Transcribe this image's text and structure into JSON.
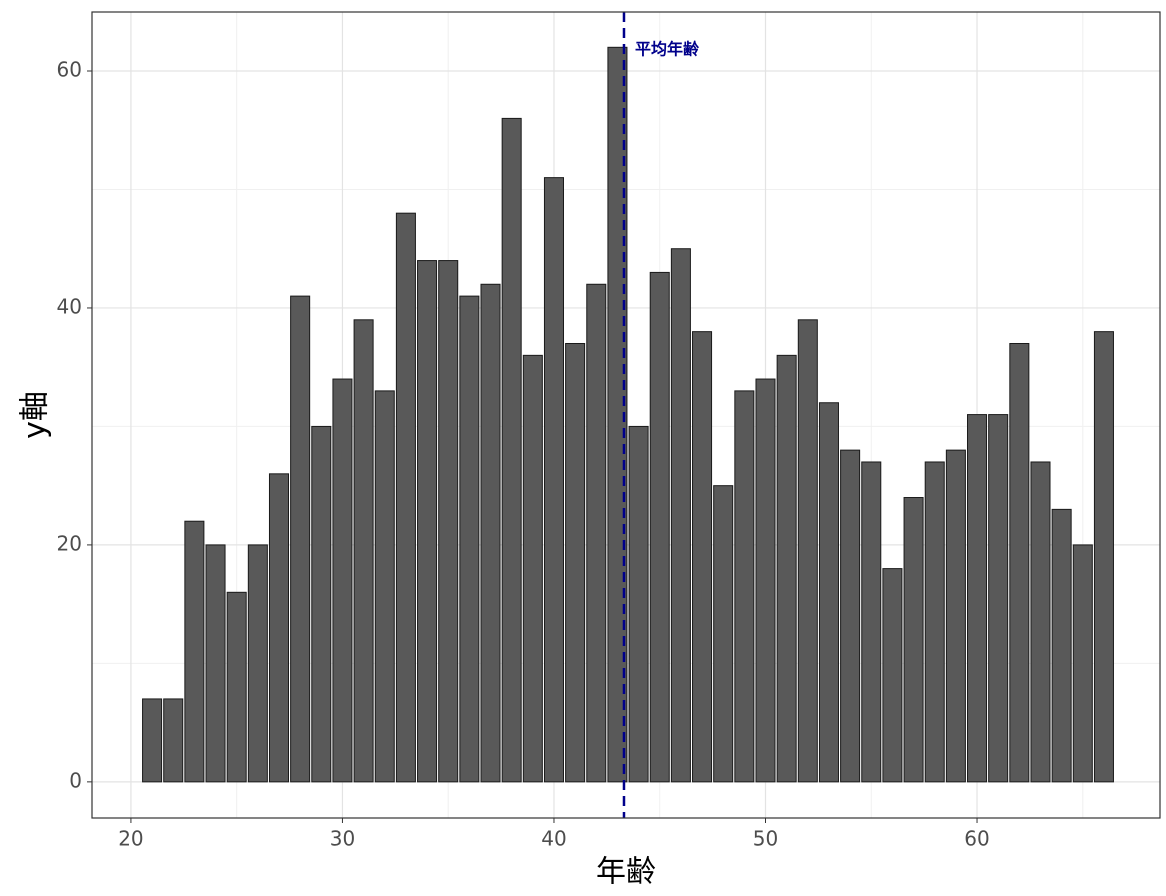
{
  "chart_data": {
    "type": "bar",
    "x": [
      21,
      22,
      23,
      24,
      25,
      26,
      27,
      28,
      29,
      30,
      31,
      32,
      33,
      34,
      35,
      36,
      37,
      38,
      39,
      40,
      41,
      42,
      43,
      44,
      45,
      46,
      47,
      48,
      49,
      50,
      51,
      52,
      53,
      54,
      55,
      56,
      57,
      58,
      59,
      60,
      61,
      62,
      63,
      64,
      65,
      66
    ],
    "values": [
      7,
      7,
      22,
      20,
      16,
      20,
      26,
      41,
      30,
      34,
      39,
      33,
      48,
      44,
      44,
      41,
      42,
      56,
      36,
      51,
      37,
      42,
      62,
      30,
      43,
      45,
      38,
      25,
      33,
      34,
      36,
      39,
      32,
      28,
      27,
      18,
      24,
      27,
      28,
      31,
      31,
      37,
      27,
      23,
      20,
      38
    ],
    "color": "#595959",
    "x_label": "年齢",
    "y_label": "y軸",
    "xlim": [
      18.16,
      68.65
    ],
    "ylim": [
      -3.05,
      64.98
    ],
    "xticks": [
      20,
      30,
      40,
      50,
      60
    ],
    "yticks": [
      0,
      20,
      40,
      60
    ],
    "x_minor_grid": [
      25,
      35,
      45,
      55,
      65
    ],
    "y_minor_grid": [
      10,
      30,
      50
    ],
    "grid": true,
    "vline": {
      "value": 43.31,
      "label": "平均年齢",
      "color": "#00008b"
    }
  }
}
